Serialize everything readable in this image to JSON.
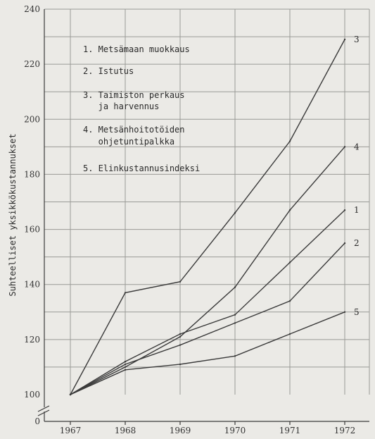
{
  "chart_data": {
    "type": "line",
    "title": "",
    "xlabel": "",
    "ylabel": "Suhteelliset yksikkökustannukset",
    "x": [
      "1967",
      "1968",
      "1969",
      "1970",
      "1971",
      "1972"
    ],
    "ylim": [
      100,
      240
    ],
    "y_ticks": [
      100,
      120,
      140,
      160,
      180,
      200,
      220,
      240
    ],
    "y_zero_label": "0",
    "grid": true,
    "series": [
      {
        "name": "1",
        "values": [
          100,
          112,
          122,
          129,
          148,
          167
        ]
      },
      {
        "name": "2",
        "values": [
          100,
          111,
          118,
          126,
          134,
          155
        ]
      },
      {
        "name": "3",
        "values": [
          100,
          137,
          141,
          166,
          192,
          229
        ]
      },
      {
        "name": "4",
        "values": [
          100,
          110,
          121,
          139,
          167,
          190
        ]
      },
      {
        "name": "5",
        "values": [
          100,
          109,
          111,
          114,
          122,
          130
        ]
      }
    ],
    "legend": {
      "placement": "top-left",
      "lines": [
        "1. Metsämaan muokkaus",
        "2. Istutus",
        "3. Taimiston perkaus",
        "   ja harvennus",
        "4. Metsänhoitotöiden",
        "   ohjetuntipalkka",
        "5. Elinkustannusindeksi"
      ]
    }
  }
}
